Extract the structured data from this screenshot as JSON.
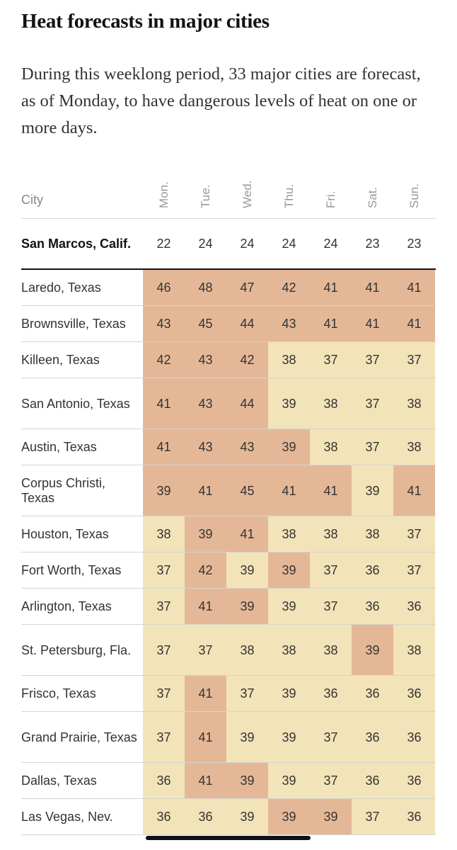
{
  "title": "Heat forecasts in major cities",
  "description": "During this weeklong period, 33 major cities are forecast, as of Monday, to have dangerous levels of heat on one or more days.",
  "colors": {
    "level0": "#ffffff",
    "level1": "#f3e3b8",
    "level2": "#e4b897",
    "accent": "#121212"
  },
  "table": {
    "city_header": "City",
    "days": [
      "Mon.",
      "Tue.",
      "Wed.",
      "Thu.",
      "Fri.",
      "Sat.",
      "Sun."
    ],
    "featured": {
      "city": "San Marcos, Calif.",
      "values": [
        22,
        24,
        24,
        24,
        24,
        23,
        23
      ],
      "levels": [
        0,
        0,
        0,
        0,
        0,
        0,
        0
      ]
    },
    "rows": [
      {
        "city": "Laredo, Texas",
        "values": [
          46,
          48,
          47,
          42,
          41,
          41,
          41
        ],
        "levels": [
          2,
          2,
          2,
          2,
          2,
          2,
          2
        ]
      },
      {
        "city": "Brownsville, Texas",
        "values": [
          43,
          45,
          44,
          43,
          41,
          41,
          41
        ],
        "levels": [
          2,
          2,
          2,
          2,
          2,
          2,
          2
        ]
      },
      {
        "city": "Killeen, Texas",
        "values": [
          42,
          43,
          42,
          38,
          37,
          37,
          37
        ],
        "levels": [
          2,
          2,
          2,
          1,
          1,
          1,
          1
        ]
      },
      {
        "city": "San Antonio, Texas",
        "values": [
          41,
          43,
          44,
          39,
          38,
          37,
          38
        ],
        "levels": [
          2,
          2,
          2,
          1,
          1,
          1,
          1
        ]
      },
      {
        "city": "Austin, Texas",
        "values": [
          41,
          43,
          43,
          39,
          38,
          37,
          38
        ],
        "levels": [
          2,
          2,
          2,
          2,
          1,
          1,
          1
        ]
      },
      {
        "city": "Corpus Christi, Texas",
        "values": [
          39,
          41,
          45,
          41,
          41,
          39,
          41
        ],
        "levels": [
          2,
          2,
          2,
          2,
          2,
          1,
          2
        ]
      },
      {
        "city": "Houston, Texas",
        "values": [
          38,
          39,
          41,
          38,
          38,
          38,
          37
        ],
        "levels": [
          1,
          2,
          2,
          1,
          1,
          1,
          1
        ]
      },
      {
        "city": "Fort Worth, Texas",
        "values": [
          37,
          42,
          39,
          39,
          37,
          36,
          37
        ],
        "levels": [
          1,
          2,
          1,
          2,
          1,
          1,
          1
        ]
      },
      {
        "city": "Arlington, Texas",
        "values": [
          37,
          41,
          39,
          39,
          37,
          36,
          36
        ],
        "levels": [
          1,
          2,
          2,
          1,
          1,
          1,
          1
        ]
      },
      {
        "city": "St. Petersburg, Fla.",
        "values": [
          37,
          37,
          38,
          38,
          38,
          39,
          38
        ],
        "levels": [
          1,
          1,
          1,
          1,
          1,
          2,
          1
        ]
      },
      {
        "city": "Frisco, Texas",
        "values": [
          37,
          41,
          37,
          39,
          36,
          36,
          36
        ],
        "levels": [
          1,
          2,
          1,
          1,
          1,
          1,
          1
        ]
      },
      {
        "city": "Grand Prairie, Texas",
        "values": [
          37,
          41,
          39,
          39,
          37,
          36,
          36
        ],
        "levels": [
          1,
          2,
          1,
          1,
          1,
          1,
          1
        ]
      },
      {
        "city": "Dallas, Texas",
        "values": [
          36,
          41,
          39,
          39,
          37,
          36,
          36
        ],
        "levels": [
          1,
          2,
          2,
          1,
          1,
          1,
          1
        ]
      },
      {
        "city": "Las Vegas, Nev.",
        "values": [
          36,
          36,
          39,
          39,
          39,
          37,
          36
        ],
        "levels": [
          1,
          1,
          1,
          2,
          2,
          1,
          1
        ]
      }
    ]
  }
}
